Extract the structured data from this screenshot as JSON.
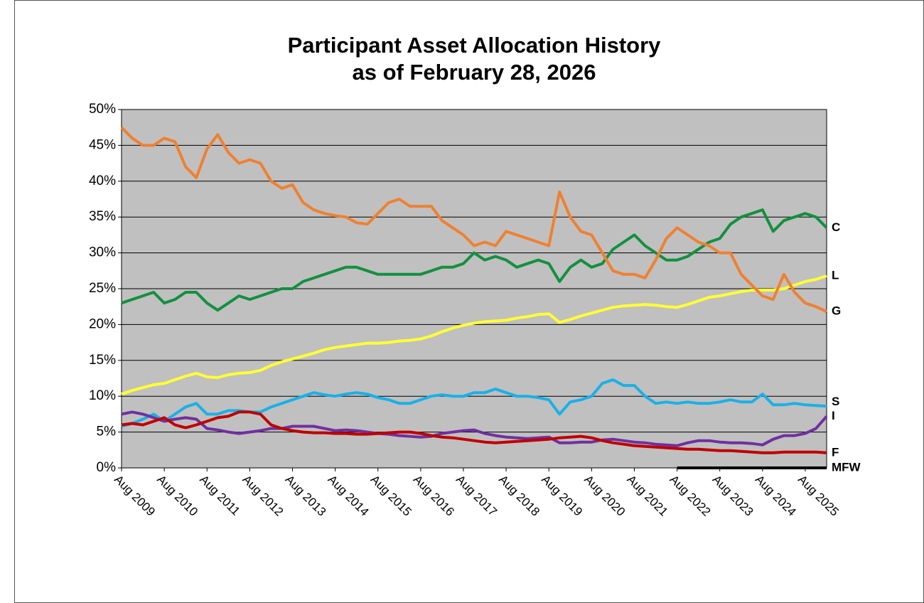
{
  "chart_data": {
    "type": "line",
    "title": "Participant Asset Allocation History",
    "subtitle": "as of February 28, 2026",
    "categories": [
      "Aug 2009",
      null,
      null,
      null,
      "Aug 2010",
      null,
      null,
      null,
      "Aug 2011",
      null,
      null,
      null,
      "Aug 2012",
      null,
      null,
      null,
      "Aug 2013",
      null,
      null,
      null,
      "Aug 2014",
      null,
      null,
      null,
      "Aug 2015",
      null,
      null,
      null,
      "Aug 2016",
      null,
      null,
      null,
      "Aug 2017",
      null,
      null,
      null,
      "Aug 2018",
      null,
      null,
      null,
      "Aug 2019",
      null,
      null,
      null,
      "Aug 2020",
      null,
      null,
      null,
      "Aug 2021",
      null,
      null,
      null,
      "Aug 2022",
      null,
      null,
      null,
      "Aug 2023",
      null,
      null,
      null,
      "Aug 2024",
      null,
      null,
      null,
      "Aug 2025",
      null,
      null
    ],
    "series": [
      {
        "name": "C",
        "color": "#139040",
        "values": [
          23,
          23.5,
          24,
          24.5,
          23,
          23.5,
          24.5,
          24.5,
          23,
          22,
          23,
          24,
          23.5,
          24,
          24.5,
          25,
          25,
          26,
          26.5,
          27,
          27.5,
          28,
          28,
          27.5,
          27,
          27,
          27,
          27,
          27,
          27.5,
          28,
          28,
          28.5,
          30,
          29,
          29.5,
          29,
          28,
          28.5,
          29,
          28.5,
          26,
          28,
          29,
          28,
          28.5,
          30.5,
          31.5,
          32.5,
          31,
          30,
          29,
          29,
          29.5,
          30.5,
          31.5,
          32,
          34,
          35,
          35.5,
          36,
          33,
          34.5,
          35,
          35.5,
          35,
          33.5
        ]
      },
      {
        "name": "L",
        "color": "#ffff33",
        "values": [
          10.3,
          10.8,
          11.2,
          11.6,
          11.8,
          12.3,
          12.8,
          13.2,
          12.7,
          12.6,
          13,
          13.2,
          13.3,
          13.6,
          14.3,
          14.8,
          15.2,
          15.6,
          16,
          16.5,
          16.8,
          17,
          17.2,
          17.4,
          17.4,
          17.5,
          17.7,
          17.8,
          18,
          18.4,
          19,
          19.5,
          19.9,
          20.2,
          20.4,
          20.5,
          20.6,
          20.9,
          21.1,
          21.4,
          21.5,
          20.3,
          20.7,
          21.2,
          21.6,
          22,
          22.4,
          22.6,
          22.7,
          22.8,
          22.7,
          22.5,
          22.4,
          22.8,
          23.3,
          23.8,
          24,
          24.3,
          24.6,
          24.8,
          24.8,
          24.8,
          25,
          25.5,
          26,
          26.3,
          26.8
        ]
      },
      {
        "name": "G",
        "color": "#f08030",
        "values": [
          47.5,
          46,
          45,
          45,
          46,
          45.5,
          42,
          40.5,
          44.5,
          46.5,
          44,
          42.5,
          43,
          42.5,
          40,
          39,
          39.5,
          37,
          36,
          35.5,
          35.2,
          35,
          34.2,
          34,
          35.5,
          37,
          37.5,
          36.5,
          36.5,
          36.5,
          34.5,
          33.5,
          32.5,
          31,
          31.5,
          31,
          33,
          32.5,
          32,
          31.5,
          31,
          38.5,
          35,
          33,
          32.5,
          30,
          27.5,
          27,
          27,
          26.5,
          29,
          32,
          33.5,
          32.5,
          31.5,
          31,
          30,
          30,
          27,
          25.5,
          24,
          23.5,
          27,
          24.5,
          23,
          22.5,
          21.8
        ]
      },
      {
        "name": "S",
        "color": "#1ab0e8",
        "values": [
          5.8,
          6.2,
          6.8,
          7.5,
          6.5,
          7.5,
          8.5,
          9,
          7.5,
          7.5,
          8,
          8,
          7.8,
          7.8,
          8.5,
          9,
          9.5,
          10,
          10.5,
          10.2,
          10,
          10.3,
          10.5,
          10.3,
          9.8,
          9.5,
          9,
          9,
          9.5,
          10,
          10.2,
          10,
          10,
          10.5,
          10.5,
          11,
          10.5,
          10,
          10,
          9.8,
          9.5,
          7.5,
          9.2,
          9.5,
          10,
          11.8,
          12.3,
          11.5,
          11.5,
          10,
          9,
          9.2,
          9,
          9.2,
          9,
          9,
          9.2,
          9.5,
          9.2,
          9.2,
          10.3,
          8.8,
          8.8,
          9,
          8.8,
          8.7,
          8.6
        ]
      },
      {
        "name": "I",
        "color": "#7030a0",
        "values": [
          7.5,
          7.8,
          7.5,
          7,
          6.5,
          6.8,
          7,
          6.8,
          5.5,
          5.3,
          5,
          4.8,
          5,
          5.2,
          5.5,
          5.5,
          5.8,
          5.8,
          5.8,
          5.5,
          5.2,
          5.3,
          5.2,
          5,
          4.8,
          4.7,
          4.5,
          4.4,
          4.3,
          4.4,
          4.8,
          5,
          5.2,
          5.3,
          4.8,
          4.5,
          4.3,
          4.2,
          4.1,
          4.2,
          4.3,
          3.5,
          3.5,
          3.6,
          3.6,
          3.9,
          4,
          3.8,
          3.6,
          3.5,
          3.3,
          3.2,
          3.1,
          3.5,
          3.8,
          3.8,
          3.6,
          3.5,
          3.5,
          3.4,
          3.2,
          4,
          4.5,
          4.5,
          4.8,
          5.5,
          7.2
        ]
      },
      {
        "name": "F",
        "color": "#c00000",
        "values": [
          6,
          6.2,
          6,
          6.5,
          7,
          6,
          5.6,
          6,
          6.5,
          7,
          7.2,
          7.8,
          7.8,
          7.5,
          6,
          5.5,
          5.2,
          5,
          4.9,
          4.9,
          4.8,
          4.8,
          4.7,
          4.7,
          4.8,
          4.9,
          5,
          5,
          4.8,
          4.5,
          4.3,
          4.2,
          4,
          3.8,
          3.6,
          3.5,
          3.6,
          3.7,
          3.8,
          3.9,
          4,
          4.2,
          4.3,
          4.4,
          4.2,
          3.8,
          3.5,
          3.3,
          3.1,
          3,
          2.9,
          2.8,
          2.7,
          2.6,
          2.6,
          2.5,
          2.4,
          2.4,
          2.3,
          2.2,
          2.1,
          2.1,
          2.2,
          2.2,
          2.2,
          2.2,
          2.1
        ]
      },
      {
        "name": "MFW",
        "color": "#000000",
        "values": [
          null,
          null,
          null,
          null,
          null,
          null,
          null,
          null,
          null,
          null,
          null,
          null,
          null,
          null,
          null,
          null,
          null,
          null,
          null,
          null,
          null,
          null,
          null,
          null,
          null,
          null,
          null,
          null,
          null,
          null,
          null,
          null,
          null,
          null,
          null,
          null,
          null,
          null,
          null,
          null,
          null,
          null,
          null,
          null,
          null,
          null,
          null,
          null,
          null,
          null,
          null,
          null,
          0,
          0,
          0,
          0,
          0,
          0,
          0,
          0,
          0,
          0,
          0,
          0,
          0,
          0,
          0
        ]
      }
    ],
    "ylim": [
      0,
      50
    ],
    "yticks": [
      {
        "value": 0,
        "label": "0%"
      },
      {
        "value": 5,
        "label": "5%"
      },
      {
        "value": 10,
        "label": "10%"
      },
      {
        "value": 15,
        "label": "15%"
      },
      {
        "value": 20,
        "label": "20%"
      },
      {
        "value": 25,
        "label": "25%"
      },
      {
        "value": 30,
        "label": "30%"
      },
      {
        "value": 35,
        "label": "35%"
      },
      {
        "value": 40,
        "label": "40%"
      },
      {
        "value": 45,
        "label": "45%"
      },
      {
        "value": 50,
        "label": "50%"
      }
    ],
    "grid": true
  }
}
